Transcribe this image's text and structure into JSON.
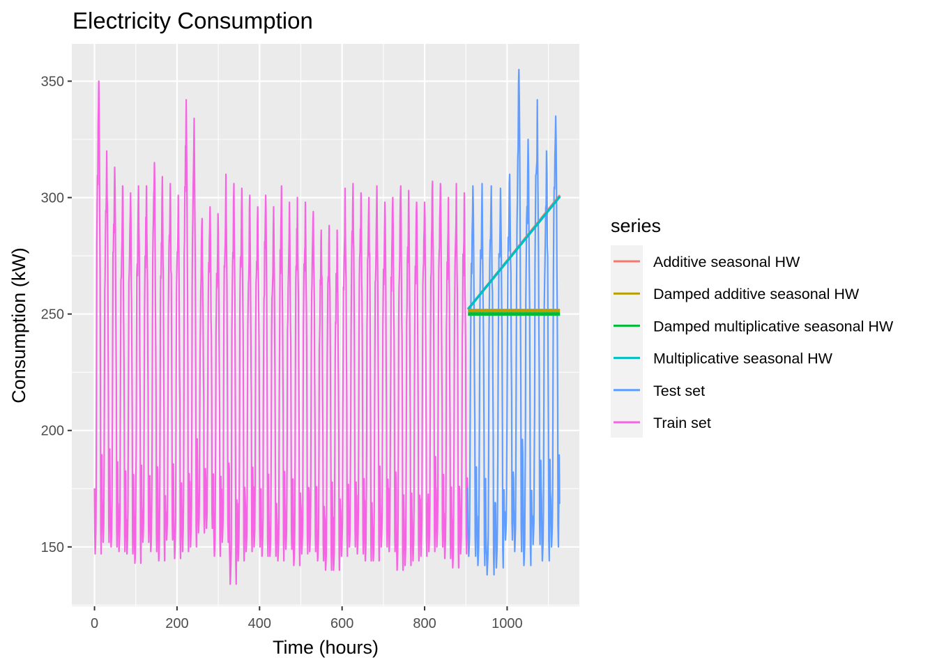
{
  "chart_data": {
    "type": "line",
    "title": "Electricity Consumption",
    "xlabel": "Time (hours)",
    "ylabel": "Consumption (kW)",
    "xlim": [
      -55,
      1175
    ],
    "ylim": [
      124.5,
      366
    ],
    "x_ticks": [
      0,
      200,
      400,
      600,
      800,
      1000
    ],
    "x_tick_labels": [
      "0",
      "200",
      "400",
      "600",
      "800",
      "1000"
    ],
    "y_ticks": [
      150,
      200,
      250,
      300,
      350
    ],
    "y_tick_labels": [
      "150",
      "200",
      "250",
      "300",
      "350"
    ],
    "x_minor_ticks": [
      100,
      300,
      500,
      700,
      900,
      1100
    ],
    "y_minor_ticks": [
      125,
      175,
      225,
      275,
      325
    ],
    "grid": true,
    "legend": {
      "title": "series",
      "position": "right",
      "entries": [
        {
          "label": "Additive seasonal HW",
          "color": "#F8766D"
        },
        {
          "label": "Damped additive seasonal HW",
          "color": "#B79F00"
        },
        {
          "label": "Damped multiplicative seasonal HW",
          "color": "#00BA38"
        },
        {
          "label": "Multiplicative seasonal HW",
          "color": "#00BFC4"
        },
        {
          "label": "Test set",
          "color": "#619CFF"
        },
        {
          "label": "Train set",
          "color": "#F564E3"
        }
      ]
    },
    "series": [
      {
        "name": "Train set",
        "color": "#F564E3",
        "x_start": 0,
        "x_end": 905,
        "period_hours": 24,
        "daily_peaks": [
          350,
          320,
          313,
          305,
          302,
          305,
          305,
          315,
          309,
          306,
          301,
          342,
          334,
          291,
          296,
          293,
          310,
          306,
          304,
          301,
          296,
          301,
          296,
          305,
          298,
          300,
          298,
          294,
          286,
          288,
          286,
          304,
          306,
          302,
          300,
          305,
          298,
          300,
          305,
          303,
          298,
          298,
          307,
          306,
          300,
          306,
          302
        ],
        "daily_troughs": [
          147,
          152,
          150,
          148,
          147,
          143,
          152,
          148,
          144,
          153,
          145,
          148,
          150,
          156,
          158,
          146,
          152,
          134,
          144,
          148,
          150,
          146,
          146,
          144,
          149,
          142,
          147,
          148,
          144,
          140,
          140,
          146,
          150,
          147,
          144,
          144,
          150,
          148,
          140,
          142,
          144,
          146,
          148,
          150,
          145,
          141,
          147
        ]
      },
      {
        "name": "Test set",
        "color": "#619CFF",
        "x_start": 905,
        "x_end": 1128,
        "period_hours": 24,
        "daily_peaks": [
          305,
          306,
          305,
          304,
          310,
          355,
          325,
          342,
          320,
          335
        ],
        "daily_troughs": [
          146,
          142,
          138,
          141,
          153,
          148,
          142,
          151,
          144,
          150
        ]
      },
      {
        "name": "Additive seasonal HW",
        "color": "#F8766D",
        "x": [
          905,
          1128
        ],
        "y": [
          252,
          301
        ]
      },
      {
        "name": "Multiplicative seasonal HW",
        "color": "#00BFC4",
        "x": [
          905,
          1128
        ],
        "y": [
          252,
          300.5
        ]
      },
      {
        "name": "Damped additive seasonal HW",
        "color": "#B79F00",
        "x": [
          905,
          1128
        ],
        "y": [
          251.5,
          251.5
        ]
      },
      {
        "name": "Damped multiplicative seasonal HW",
        "color": "#00BA38",
        "x": [
          905,
          1128
        ],
        "y": [
          250,
          250
        ]
      }
    ]
  }
}
